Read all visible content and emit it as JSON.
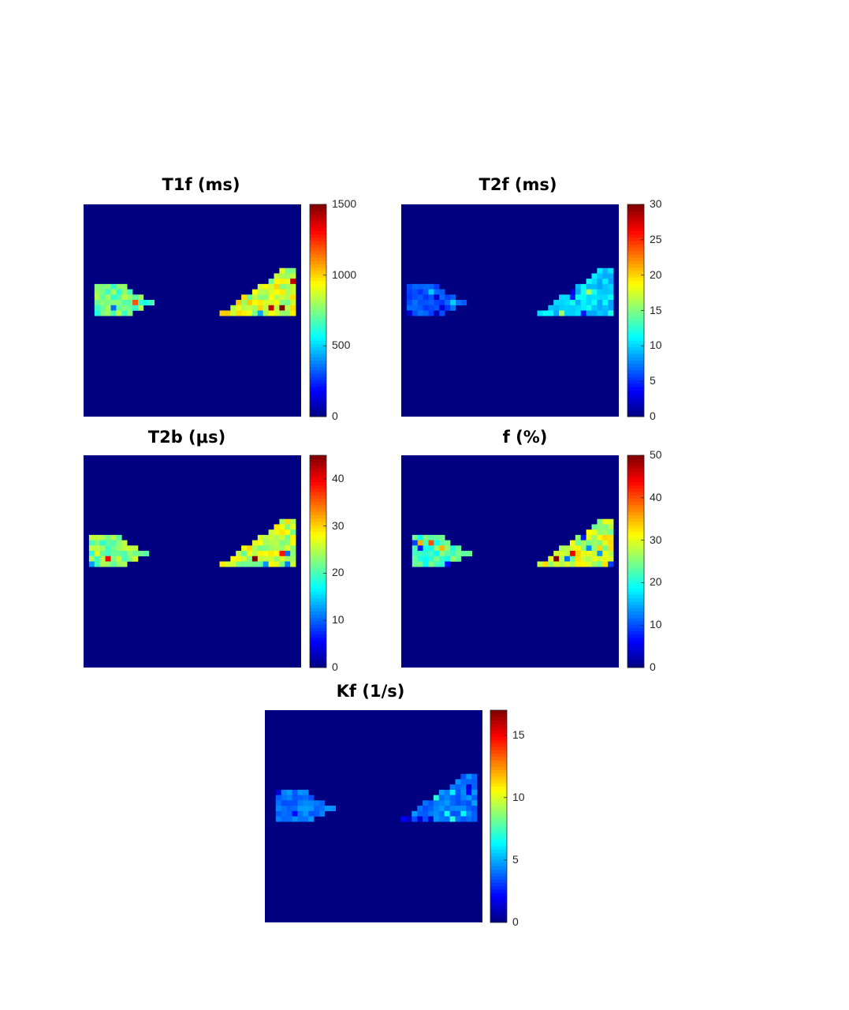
{
  "chart_data": [
    {
      "type": "heatmap",
      "title": "T1f (ms)",
      "colormap": "jet",
      "background_value": 0,
      "clim": [
        0,
        1500
      ],
      "colorbar_ticks": [
        "0",
        "500",
        "1000",
        "1500"
      ],
      "regions": [
        {
          "side": "left",
          "shape": "wedge",
          "typical_value": 700
        },
        {
          "side": "right",
          "shape": "wedge",
          "typical_value": 850
        }
      ]
    },
    {
      "type": "heatmap",
      "title": "T2f (ms)",
      "colormap": "jet",
      "background_value": 0,
      "clim": [
        0,
        30
      ],
      "colorbar_ticks": [
        "0",
        "5",
        "10",
        "15",
        "20",
        "25",
        "30"
      ],
      "regions": [
        {
          "side": "left",
          "shape": "wedge",
          "typical_value": 6
        },
        {
          "side": "right",
          "shape": "wedge",
          "typical_value": 10
        }
      ]
    },
    {
      "type": "heatmap",
      "title": "T2b (μs)",
      "colormap": "jet",
      "background_value": 0,
      "clim": [
        0,
        45
      ],
      "colorbar_ticks": [
        "0",
        "10",
        "20",
        "30",
        "40"
      ],
      "regions": [
        {
          "side": "left",
          "shape": "wedge",
          "typical_value": 22
        },
        {
          "side": "right",
          "shape": "wedge",
          "typical_value": 25
        }
      ]
    },
    {
      "type": "heatmap",
      "title": "f (%)",
      "colormap": "jet",
      "background_value": 0,
      "clim": [
        0,
        50
      ],
      "colorbar_ticks": [
        "0",
        "10",
        "20",
        "30",
        "40",
        "50"
      ],
      "regions": [
        {
          "side": "left",
          "shape": "wedge",
          "typical_value": 22
        },
        {
          "side": "right",
          "shape": "wedge",
          "typical_value": 28
        }
      ]
    },
    {
      "type": "heatmap",
      "title": "Kf (1/s)",
      "colormap": "jet",
      "background_value": 0,
      "clim": [
        0,
        17
      ],
      "colorbar_ticks": [
        "0",
        "5",
        "10",
        "15"
      ],
      "regions": [
        {
          "side": "left",
          "shape": "wedge",
          "typical_value": 4
        },
        {
          "side": "right",
          "shape": "wedge",
          "typical_value": 4
        }
      ]
    }
  ]
}
